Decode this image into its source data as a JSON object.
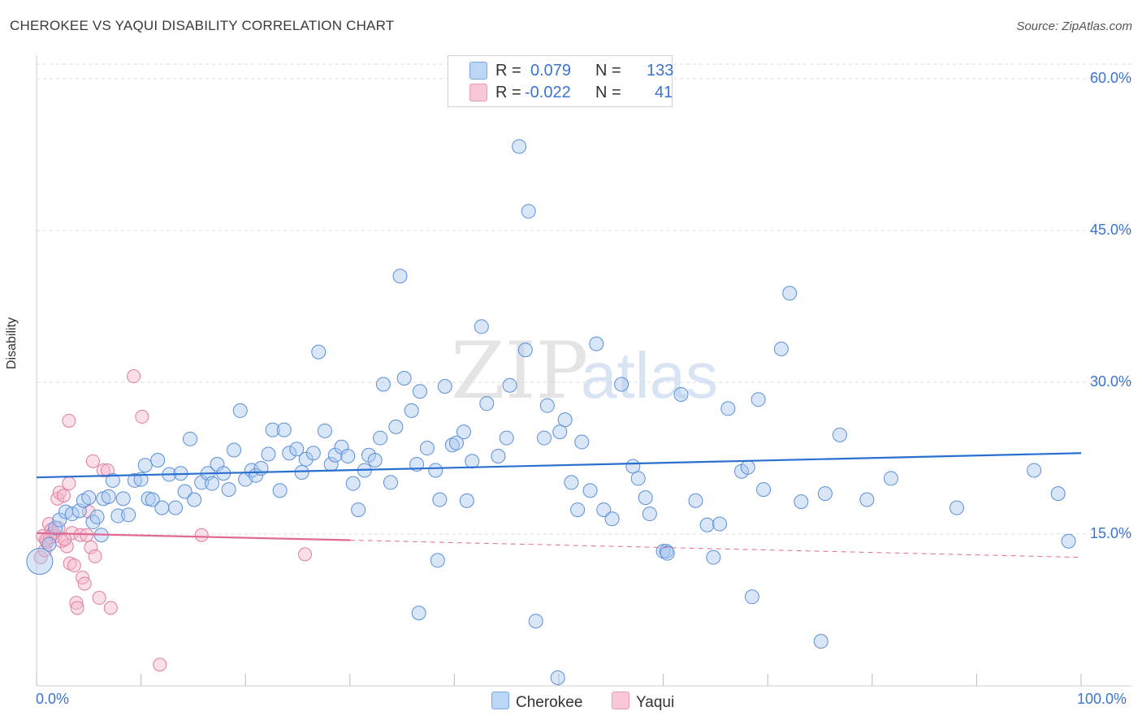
{
  "title": "CHEROKEE VS YAQUI DISABILITY CORRELATION CHART",
  "source": "Source: ZipAtlas.com",
  "watermark": {
    "zip": "ZIP",
    "atlas": "atlas"
  },
  "colors": {
    "cherokee_fill": "#a8c8f0",
    "cherokee_stroke": "#5b8fd8",
    "cherokee_line": "#2a6fd0",
    "yaqui_fill": "#f5b8cc",
    "yaqui_stroke": "#e07ca0",
    "yaqui_line": "#e06a95",
    "axis_text": "#3b73d1",
    "grid": "#dddddd"
  },
  "legend": {
    "rows": [
      {
        "r_label": "R =",
        "r_value": "0.079",
        "n_label": "N =",
        "n_value": "133"
      },
      {
        "r_label": "R =",
        "r_value": "-0.022",
        "n_label": "N =",
        "n_value": "41"
      }
    ]
  },
  "bottom_legend": {
    "cherokee": "Cherokee",
    "yaqui": "Yaqui"
  },
  "chart_data": {
    "type": "scatter",
    "xlabel": "",
    "ylabel": "Disability",
    "xlim": [
      0,
      100
    ],
    "ylim": [
      0,
      0.6
    ],
    "x_tick_labels": {
      "left": "0.0%",
      "right": "100.0%"
    },
    "y_tick_labels": [
      "60.0%",
      "45.0%",
      "30.0%",
      "15.0%"
    ],
    "y_ticks": [
      0.6,
      0.45,
      0.3,
      0.15
    ],
    "grid": true,
    "legend_position": "top-center",
    "series": [
      {
        "name": "Cherokee",
        "trend": {
          "x0": 0,
          "y0": 0.206,
          "x1": 100,
          "y1": 0.23
        },
        "points": [
          [
            0.3,
            0.123
          ],
          [
            1.2,
            0.14
          ],
          [
            1.8,
            0.156
          ],
          [
            2.2,
            0.164
          ],
          [
            2.8,
            0.172
          ],
          [
            3.4,
            0.17
          ],
          [
            4.1,
            0.173
          ],
          [
            4.5,
            0.183
          ],
          [
            5.0,
            0.186
          ],
          [
            5.4,
            0.162
          ],
          [
            5.8,
            0.167
          ],
          [
            6.2,
            0.149
          ],
          [
            6.4,
            0.185
          ],
          [
            6.9,
            0.187
          ],
          [
            7.3,
            0.203
          ],
          [
            7.8,
            0.168
          ],
          [
            8.3,
            0.185
          ],
          [
            8.8,
            0.169
          ],
          [
            9.4,
            0.203
          ],
          [
            10.0,
            0.204
          ],
          [
            10.4,
            0.218
          ],
          [
            10.7,
            0.185
          ],
          [
            11.1,
            0.184
          ],
          [
            11.6,
            0.223
          ],
          [
            12.0,
            0.176
          ],
          [
            12.7,
            0.209
          ],
          [
            13.3,
            0.176
          ],
          [
            13.8,
            0.21
          ],
          [
            14.2,
            0.192
          ],
          [
            14.7,
            0.244
          ],
          [
            15.1,
            0.184
          ],
          [
            15.8,
            0.201
          ],
          [
            16.4,
            0.21
          ],
          [
            16.8,
            0.2
          ],
          [
            17.3,
            0.219
          ],
          [
            17.9,
            0.21
          ],
          [
            18.4,
            0.194
          ],
          [
            18.9,
            0.233
          ],
          [
            19.5,
            0.272
          ],
          [
            20.0,
            0.204
          ],
          [
            20.6,
            0.213
          ],
          [
            21.0,
            0.208
          ],
          [
            21.5,
            0.215
          ],
          [
            22.2,
            0.229
          ],
          [
            22.6,
            0.253
          ],
          [
            23.3,
            0.193
          ],
          [
            23.7,
            0.253
          ],
          [
            24.2,
            0.23
          ],
          [
            24.9,
            0.234
          ],
          [
            25.4,
            0.211
          ],
          [
            25.8,
            0.224
          ],
          [
            26.5,
            0.23
          ],
          [
            27.0,
            0.33
          ],
          [
            27.6,
            0.252
          ],
          [
            28.2,
            0.219
          ],
          [
            28.6,
            0.228
          ],
          [
            29.2,
            0.236
          ],
          [
            29.8,
            0.227
          ],
          [
            30.3,
            0.2
          ],
          [
            30.8,
            0.174
          ],
          [
            31.4,
            0.213
          ],
          [
            31.8,
            0.228
          ],
          [
            32.4,
            0.223
          ],
          [
            32.9,
            0.245
          ],
          [
            33.2,
            0.298
          ],
          [
            33.9,
            0.201
          ],
          [
            34.4,
            0.256
          ],
          [
            34.8,
            0.405
          ],
          [
            35.2,
            0.304
          ],
          [
            35.9,
            0.272
          ],
          [
            36.4,
            0.219
          ],
          [
            36.7,
            0.291
          ],
          [
            37.4,
            0.235
          ],
          [
            38.2,
            0.213
          ],
          [
            38.6,
            0.184
          ],
          [
            39.1,
            0.296
          ],
          [
            39.8,
            0.238
          ],
          [
            40.2,
            0.24
          ],
          [
            40.9,
            0.251
          ],
          [
            41.2,
            0.183
          ],
          [
            41.7,
            0.222
          ],
          [
            42.6,
            0.355
          ],
          [
            43.1,
            0.279
          ],
          [
            44.2,
            0.227
          ],
          [
            45.0,
            0.245
          ],
          [
            45.3,
            0.297
          ],
          [
            46.8,
            0.332
          ],
          [
            47.1,
            0.469
          ],
          [
            48.6,
            0.245
          ],
          [
            48.9,
            0.277
          ],
          [
            50.1,
            0.251
          ],
          [
            50.6,
            0.263
          ],
          [
            51.2,
            0.201
          ],
          [
            51.8,
            0.174
          ],
          [
            52.2,
            0.241
          ],
          [
            53.0,
            0.193
          ],
          [
            53.6,
            0.338
          ],
          [
            54.3,
            0.174
          ],
          [
            55.1,
            0.165
          ],
          [
            56.0,
            0.298
          ],
          [
            57.1,
            0.217
          ],
          [
            57.6,
            0.205
          ],
          [
            58.3,
            0.186
          ],
          [
            58.7,
            0.17
          ],
          [
            60.0,
            0.133
          ],
          [
            60.3,
            0.133
          ],
          [
            61.7,
            0.288
          ],
          [
            63.1,
            0.183
          ],
          [
            64.2,
            0.159
          ],
          [
            64.8,
            0.127
          ],
          [
            65.4,
            0.16
          ],
          [
            66.2,
            0.274
          ],
          [
            67.5,
            0.212
          ],
          [
            68.1,
            0.216
          ],
          [
            68.5,
            0.088
          ],
          [
            69.1,
            0.283
          ],
          [
            69.6,
            0.194
          ],
          [
            71.3,
            0.333
          ],
          [
            72.1,
            0.388
          ],
          [
            75.1,
            0.044
          ],
          [
            75.5,
            0.19
          ],
          [
            76.9,
            0.248
          ],
          [
            79.5,
            0.184
          ],
          [
            81.8,
            0.205
          ],
          [
            88.1,
            0.176
          ],
          [
            95.5,
            0.213
          ],
          [
            97.8,
            0.19
          ],
          [
            98.8,
            0.143
          ],
          [
            36.6,
            0.072
          ],
          [
            47.8,
            0.064
          ],
          [
            49.9,
            0.008
          ],
          [
            60.4,
            0.131
          ],
          [
            73.2,
            0.182
          ],
          [
            38.4,
            0.124
          ],
          [
            46.2,
            0.533
          ]
        ]
      },
      {
        "name": "Yaqui",
        "trend": {
          "x0": 0,
          "y0": 0.151,
          "x1": 30,
          "y1": 0.144,
          "dash_to_x": 100,
          "dash_to_y": 0.127
        },
        "points": [
          [
            0.4,
            0.127
          ],
          [
            0.6,
            0.148
          ],
          [
            0.8,
            0.134
          ],
          [
            1.0,
            0.142
          ],
          [
            1.2,
            0.16
          ],
          [
            1.4,
            0.154
          ],
          [
            1.6,
            0.151
          ],
          [
            1.8,
            0.148
          ],
          [
            2.0,
            0.185
          ],
          [
            2.2,
            0.191
          ],
          [
            2.4,
            0.143
          ],
          [
            2.6,
            0.188
          ],
          [
            2.9,
            0.138
          ],
          [
            3.1,
            0.2
          ],
          [
            3.2,
            0.121
          ],
          [
            3.4,
            0.151
          ],
          [
            3.6,
            0.119
          ],
          [
            3.8,
            0.082
          ],
          [
            3.9,
            0.077
          ],
          [
            4.2,
            0.149
          ],
          [
            4.4,
            0.107
          ],
          [
            4.6,
            0.101
          ],
          [
            5.0,
            0.172
          ],
          [
            5.2,
            0.137
          ],
          [
            5.4,
            0.222
          ],
          [
            5.6,
            0.128
          ],
          [
            6.0,
            0.087
          ],
          [
            6.4,
            0.213
          ],
          [
            6.8,
            0.213
          ],
          [
            7.1,
            0.077
          ],
          [
            3.1,
            0.262
          ],
          [
            9.3,
            0.306
          ],
          [
            10.1,
            0.266
          ],
          [
            11.8,
            0.021
          ],
          [
            15.8,
            0.149
          ],
          [
            25.7,
            0.13
          ],
          [
            1.3,
            0.147
          ],
          [
            2.1,
            0.156
          ],
          [
            4.8,
            0.149
          ],
          [
            0.9,
            0.144
          ],
          [
            2.7,
            0.145
          ]
        ]
      }
    ]
  }
}
